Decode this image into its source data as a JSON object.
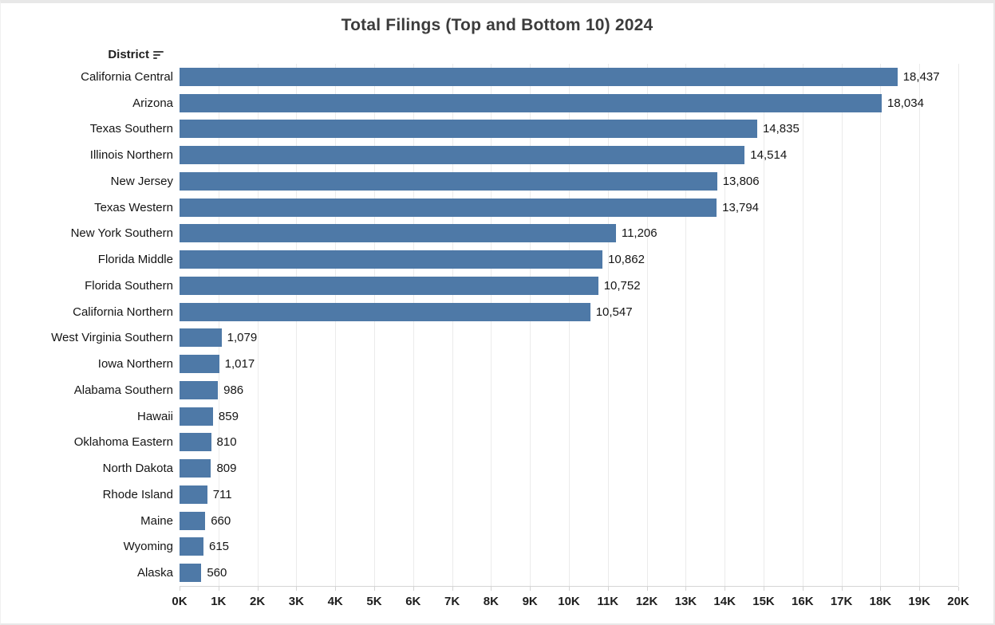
{
  "title": "Total Filings (Top and Bottom 10) 2024",
  "header": {
    "district_label": "District",
    "sort_icon": "sort-descending-icon",
    "sort_order": "descending"
  },
  "colors": {
    "bar": "#4e79a7",
    "gridline": "#ebebeb",
    "axis_line": "#d4d4d4",
    "title_text": "#3c3c3c",
    "label_text": "#151515"
  },
  "chart_data": {
    "type": "bar",
    "orientation": "horizontal",
    "title": "Total Filings (Top and Bottom 10) 2024",
    "ylabel": "District",
    "xlabel": "",
    "categories": [
      "California Central",
      "Arizona",
      "Texas Southern",
      "Illinois Northern",
      "New Jersey",
      "Texas Western",
      "New York Southern",
      "Florida Middle",
      "Florida Southern",
      "California Northern",
      "West Virginia Southern",
      "Iowa Northern",
      "Alabama Southern",
      "Hawaii",
      "Oklahoma Eastern",
      "North Dakota",
      "Rhode Island",
      "Maine",
      "Wyoming",
      "Alaska"
    ],
    "values": [
      18437,
      18034,
      14835,
      14514,
      13806,
      13794,
      11206,
      10862,
      10752,
      10547,
      1079,
      1017,
      986,
      859,
      810,
      809,
      711,
      660,
      615,
      560
    ],
    "value_labels": [
      "18,437",
      "18,034",
      "14,835",
      "14,514",
      "13,806",
      "13,794",
      "11,206",
      "10,862",
      "10,752",
      "10,547",
      "1,079",
      "1,017",
      "986",
      "859",
      "810",
      "809",
      "711",
      "660",
      "615",
      "560"
    ],
    "xlim": [
      0,
      20000
    ],
    "x_tick_interval": 1000,
    "x_tick_labels": [
      "0K",
      "1K",
      "2K",
      "3K",
      "4K",
      "5K",
      "6K",
      "7K",
      "8K",
      "9K",
      "10K",
      "11K",
      "12K",
      "13K",
      "14K",
      "15K",
      "16K",
      "17K",
      "18K",
      "19K",
      "20K"
    ],
    "grid": true,
    "legend": false,
    "bar_color": "#4e79a7",
    "sort": "descending"
  }
}
